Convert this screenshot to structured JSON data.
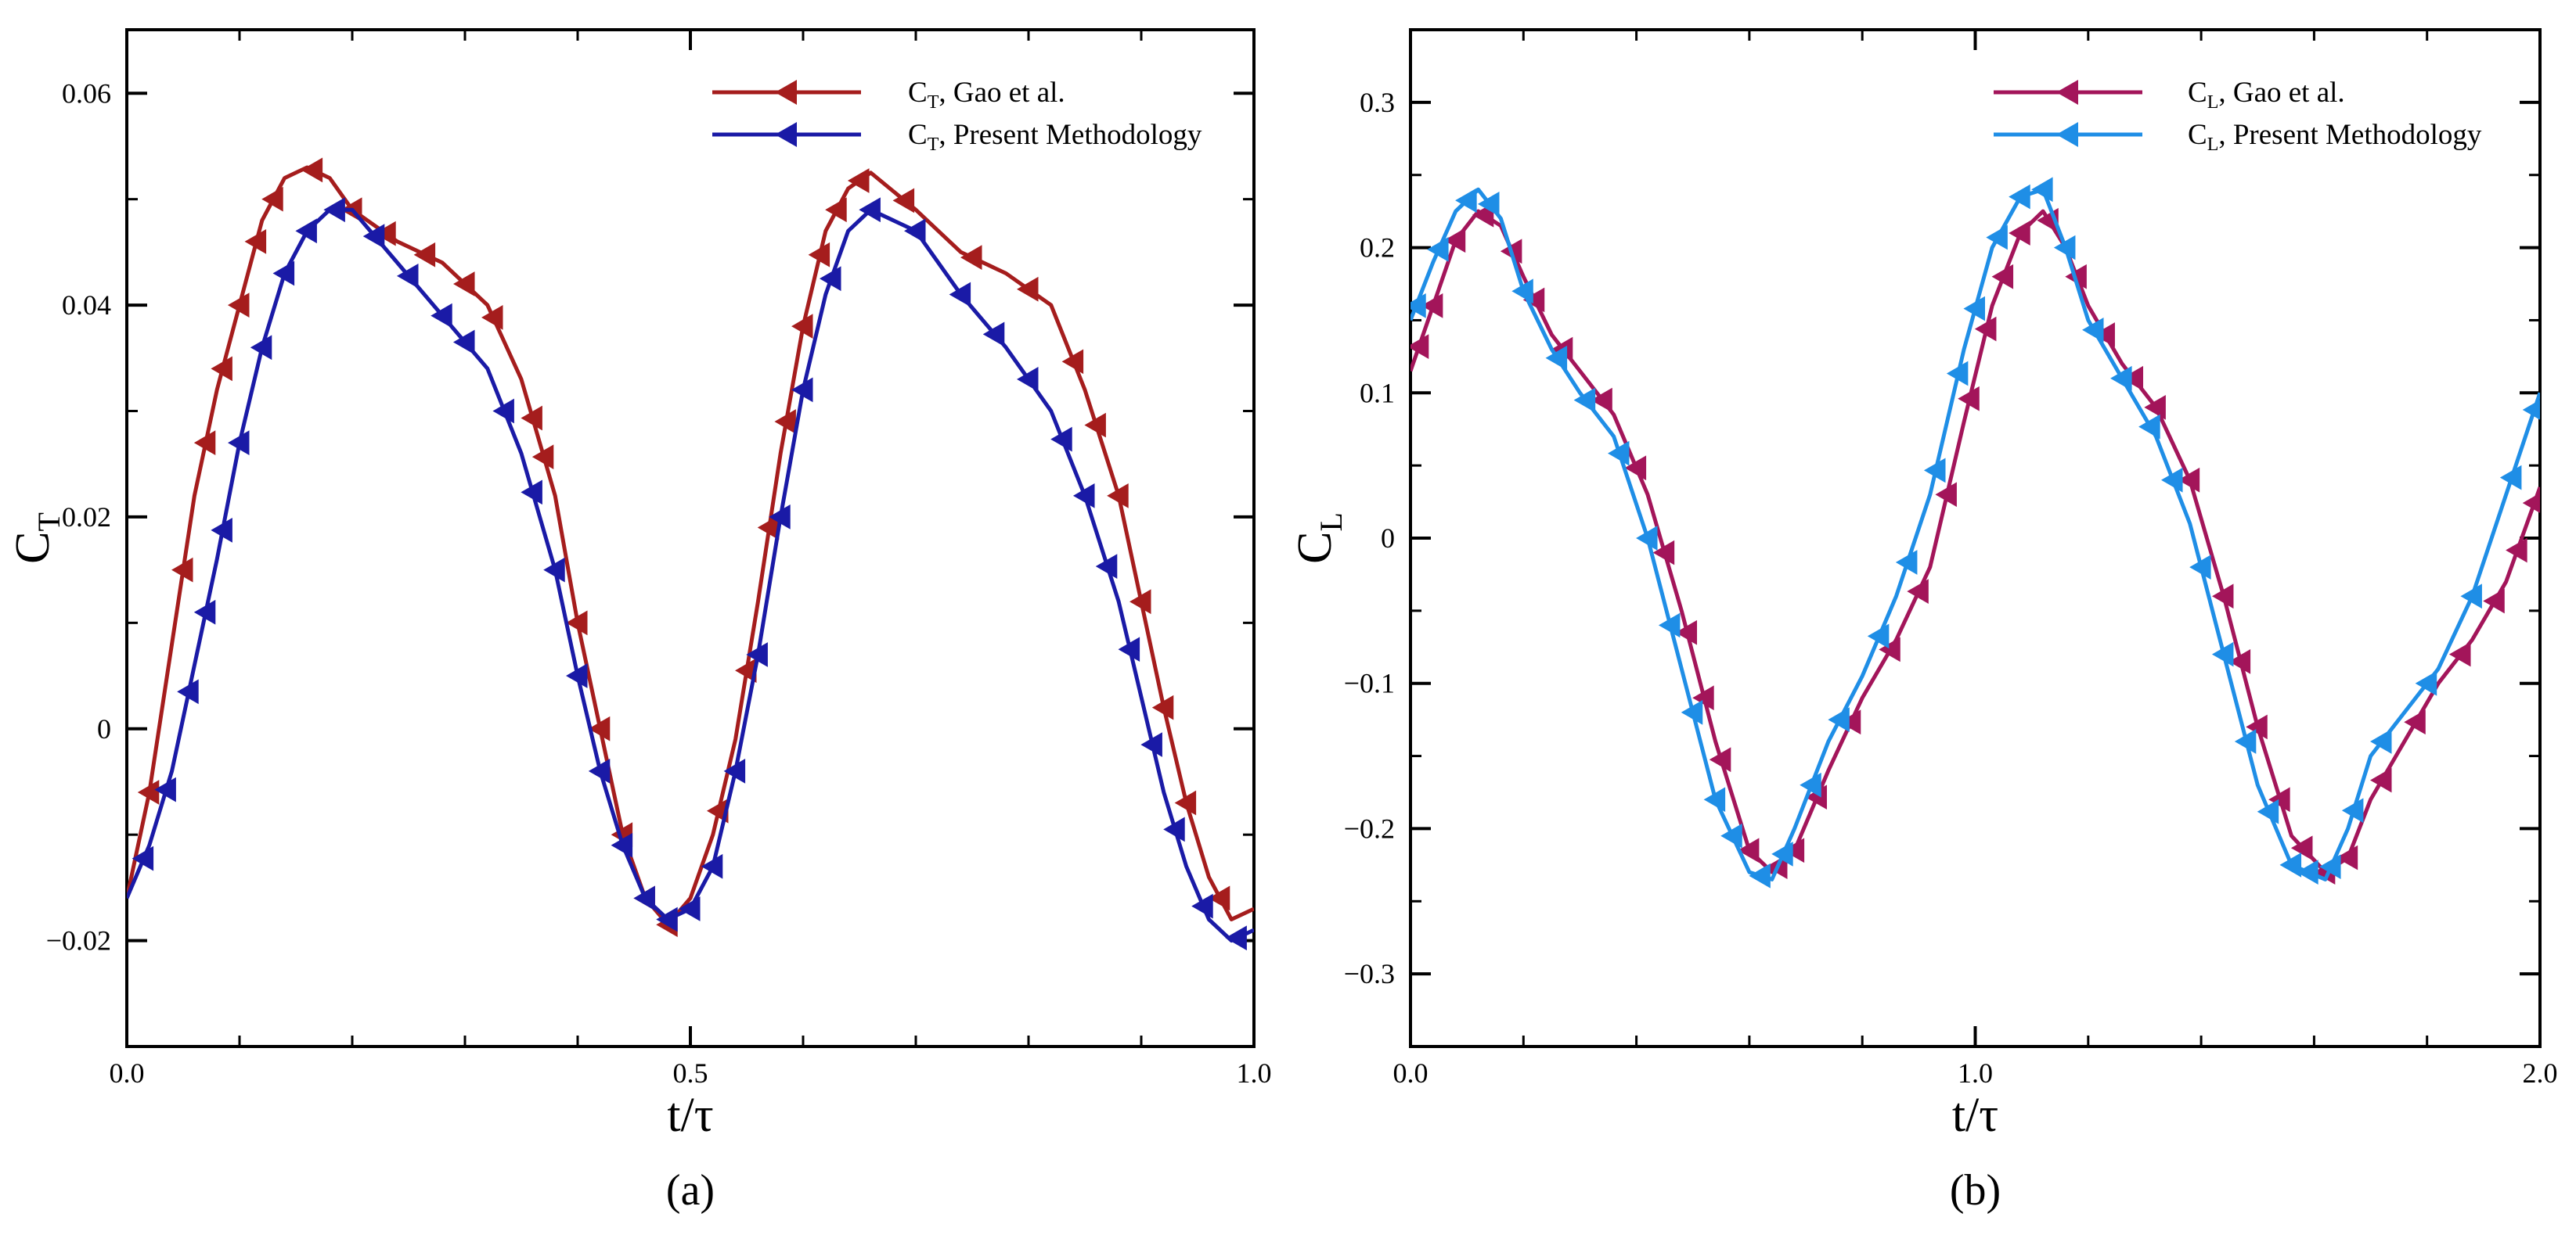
{
  "chart_data": [
    {
      "type": "line",
      "panel_label": "(a)",
      "xlabel": "t/τ",
      "ylabel": {
        "main": "C",
        "sub": "T"
      },
      "xlim": [
        0,
        1.0
      ],
      "ylim": [
        -0.03,
        0.066
      ],
      "x_ticks": [
        {
          "value": 0,
          "label": "0.0"
        },
        {
          "value": 0.5,
          "label": "0.5"
        },
        {
          "value": 1.0,
          "label": "1.0"
        }
      ],
      "y_ticks": [
        {
          "value": -0.02,
          "label": "−0.02"
        },
        {
          "value": 0,
          "label": "0"
        },
        {
          "value": 0.02,
          "label": "0.02"
        },
        {
          "value": 0.04,
          "label": "0.04"
        },
        {
          "value": 0.06,
          "label": "0.06"
        }
      ],
      "x_minor_step": 0.1,
      "y_minor_step": 0.01,
      "grid": false,
      "legend_position": "top-right",
      "series": [
        {
          "name_main": "C",
          "name_sub": "T",
          "name_rest": ", Gao et al.",
          "color": "#a51d1d",
          "marker": "left-triangle",
          "x": [
            0.0,
            0.02,
            0.04,
            0.06,
            0.08,
            0.1,
            0.12,
            0.14,
            0.16,
            0.18,
            0.2,
            0.24,
            0.28,
            0.32,
            0.35,
            0.38,
            0.4,
            0.42,
            0.44,
            0.46,
            0.48,
            0.5,
            0.52,
            0.54,
            0.56,
            0.58,
            0.6,
            0.62,
            0.64,
            0.66,
            0.7,
            0.74,
            0.78,
            0.82,
            0.85,
            0.88,
            0.9,
            0.92,
            0.94,
            0.96,
            0.98,
            1.0
          ],
          "y": [
            -0.016,
            -0.006,
            0.008,
            0.022,
            0.032,
            0.04,
            0.048,
            0.052,
            0.053,
            0.052,
            0.049,
            0.046,
            0.044,
            0.04,
            0.033,
            0.022,
            0.01,
            0.0,
            -0.01,
            -0.016,
            -0.0185,
            -0.016,
            -0.01,
            -0.001,
            0.012,
            0.026,
            0.038,
            0.047,
            0.051,
            0.0525,
            0.049,
            0.045,
            0.043,
            0.04,
            0.032,
            0.022,
            0.012,
            0.002,
            -0.007,
            -0.014,
            -0.018,
            -0.017
          ],
          "marker_x": [
            0.02,
            0.05,
            0.07,
            0.085,
            0.1,
            0.115,
            0.13,
            0.165,
            0.2,
            0.23,
            0.265,
            0.3,
            0.325,
            0.36,
            0.37,
            0.4,
            0.42,
            0.44,
            0.46,
            0.48,
            0.525,
            0.55,
            0.57,
            0.585,
            0.6,
            0.615,
            0.63,
            0.65,
            0.69,
            0.75,
            0.8,
            0.84,
            0.86,
            0.88,
            0.9,
            0.92,
            0.94,
            0.97
          ]
        },
        {
          "name_main": "C",
          "name_sub": "T",
          "name_rest": ", Present Methodology",
          "color": "#1a1aa6",
          "marker": "left-triangle",
          "x": [
            0.0,
            0.02,
            0.04,
            0.06,
            0.08,
            0.1,
            0.12,
            0.14,
            0.16,
            0.18,
            0.2,
            0.24,
            0.28,
            0.32,
            0.35,
            0.38,
            0.4,
            0.42,
            0.44,
            0.46,
            0.48,
            0.5,
            0.52,
            0.54,
            0.56,
            0.58,
            0.6,
            0.62,
            0.64,
            0.66,
            0.7,
            0.74,
            0.78,
            0.82,
            0.85,
            0.88,
            0.9,
            0.92,
            0.94,
            0.96,
            0.98,
            1.0
          ],
          "y": [
            -0.016,
            -0.011,
            -0.004,
            0.006,
            0.016,
            0.027,
            0.036,
            0.043,
            0.047,
            0.049,
            0.049,
            0.044,
            0.039,
            0.034,
            0.026,
            0.015,
            0.005,
            -0.004,
            -0.011,
            -0.016,
            -0.018,
            -0.017,
            -0.013,
            -0.004,
            0.007,
            0.02,
            0.032,
            0.041,
            0.047,
            0.049,
            0.047,
            0.041,
            0.036,
            0.03,
            0.022,
            0.012,
            0.003,
            -0.006,
            -0.013,
            -0.018,
            -0.02,
            -0.019
          ],
          "marker_x": [
            0.015,
            0.035,
            0.055,
            0.07,
            0.085,
            0.1,
            0.12,
            0.14,
            0.16,
            0.185,
            0.22,
            0.25,
            0.28,
            0.3,
            0.335,
            0.36,
            0.38,
            0.4,
            0.42,
            0.44,
            0.46,
            0.48,
            0.5,
            0.52,
            0.54,
            0.56,
            0.58,
            0.6,
            0.625,
            0.66,
            0.7,
            0.74,
            0.77,
            0.8,
            0.83,
            0.85,
            0.87,
            0.89,
            0.91,
            0.93,
            0.955,
            0.985
          ]
        }
      ]
    },
    {
      "type": "line",
      "panel_label": "(b)",
      "xlabel": "t/τ",
      "ylabel": {
        "main": "C",
        "sub": "L"
      },
      "xlim": [
        0,
        2.0
      ],
      "ylim": [
        -0.35,
        0.35
      ],
      "x_ticks": [
        {
          "value": 0,
          "label": "0.0"
        },
        {
          "value": 1.0,
          "label": "1.0"
        },
        {
          "value": 2.0,
          "label": "2.0"
        }
      ],
      "y_ticks": [
        {
          "value": -0.3,
          "label": "−0.3"
        },
        {
          "value": -0.2,
          "label": "−0.2"
        },
        {
          "value": -0.1,
          "label": "−0.1"
        },
        {
          "value": 0,
          "label": "0"
        },
        {
          "value": 0.1,
          "label": "0.1"
        },
        {
          "value": 0.2,
          "label": "0.2"
        },
        {
          "value": 0.3,
          "label": "0.3"
        }
      ],
      "x_minor_step": 0.2,
      "y_minor_step": 0.05,
      "grid": false,
      "legend_position": "top-right",
      "series": [
        {
          "name_main": "C",
          "name_sub": "L",
          "name_rest": ", Gao et al.",
          "color": "#a3155a",
          "marker": "left-triangle",
          "x": [
            0.0,
            0.04,
            0.08,
            0.12,
            0.16,
            0.2,
            0.25,
            0.3,
            0.36,
            0.42,
            0.48,
            0.54,
            0.6,
            0.64,
            0.68,
            0.74,
            0.8,
            0.86,
            0.92,
            0.98,
            1.03,
            1.08,
            1.12,
            1.16,
            1.2,
            1.26,
            1.32,
            1.38,
            1.44,
            1.5,
            1.56,
            1.62,
            1.66,
            1.7,
            1.76,
            1.82,
            1.88,
            1.94,
            2.0
          ],
          "y": [
            0.115,
            0.16,
            0.205,
            0.225,
            0.215,
            0.18,
            0.14,
            0.115,
            0.085,
            0.03,
            -0.05,
            -0.14,
            -0.215,
            -0.23,
            -0.215,
            -0.16,
            -0.11,
            -0.07,
            -0.02,
            0.08,
            0.16,
            0.21,
            0.225,
            0.2,
            0.16,
            0.12,
            0.09,
            0.04,
            -0.04,
            -0.13,
            -0.205,
            -0.23,
            -0.22,
            -0.18,
            -0.14,
            -0.1,
            -0.07,
            -0.03,
            0.035
          ],
          "marker_x": [
            0.015,
            0.04,
            0.08,
            0.13,
            0.18,
            0.22,
            0.27,
            0.34,
            0.4,
            0.45,
            0.49,
            0.52,
            0.55,
            0.6,
            0.65,
            0.68,
            0.72,
            0.78,
            0.85,
            0.9,
            0.95,
            0.99,
            1.02,
            1.05,
            1.08,
            1.13,
            1.18,
            1.23,
            1.28,
            1.32,
            1.38,
            1.44,
            1.47,
            1.5,
            1.54,
            1.58,
            1.62,
            1.66,
            1.72,
            1.78,
            1.86,
            1.92,
            1.96,
            1.99
          ]
        },
        {
          "name_main": "C",
          "name_sub": "L",
          "name_rest": ", Present Methodology",
          "color": "#1f8ee6",
          "marker": "left-triangle",
          "x": [
            0.0,
            0.04,
            0.08,
            0.12,
            0.16,
            0.2,
            0.25,
            0.3,
            0.36,
            0.42,
            0.48,
            0.54,
            0.6,
            0.64,
            0.68,
            0.74,
            0.8,
            0.86,
            0.92,
            0.98,
            1.03,
            1.08,
            1.12,
            1.16,
            1.2,
            1.26,
            1.32,
            1.38,
            1.44,
            1.5,
            1.56,
            1.62,
            1.66,
            1.7,
            1.76,
            1.82,
            1.88,
            1.94,
            2.0
          ],
          "y": [
            0.15,
            0.19,
            0.225,
            0.24,
            0.22,
            0.17,
            0.13,
            0.1,
            0.07,
            0.0,
            -0.09,
            -0.18,
            -0.23,
            -0.235,
            -0.2,
            -0.14,
            -0.095,
            -0.04,
            0.03,
            0.13,
            0.2,
            0.235,
            0.24,
            0.2,
            0.15,
            0.11,
            0.07,
            0.01,
            -0.08,
            -0.17,
            -0.225,
            -0.235,
            -0.2,
            -0.15,
            -0.12,
            -0.09,
            -0.04,
            0.03,
            0.1
          ],
          "marker_x": [
            0.01,
            0.05,
            0.1,
            0.14,
            0.2,
            0.26,
            0.31,
            0.37,
            0.42,
            0.46,
            0.5,
            0.54,
            0.57,
            0.62,
            0.66,
            0.71,
            0.76,
            0.83,
            0.88,
            0.93,
            0.97,
            1.0,
            1.04,
            1.08,
            1.12,
            1.16,
            1.21,
            1.26,
            1.31,
            1.35,
            1.4,
            1.44,
            1.48,
            1.52,
            1.56,
            1.59,
            1.63,
            1.67,
            1.72,
            1.8,
            1.88,
            1.95,
            1.99
          ]
        }
      ]
    }
  ]
}
